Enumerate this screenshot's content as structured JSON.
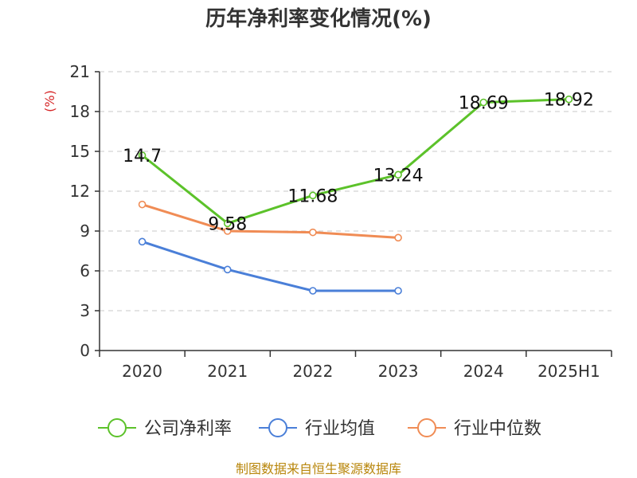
{
  "chart_data": {
    "type": "line",
    "title": "历年净利率变化情况(%)",
    "ylabel": "(%)",
    "xlabel": "",
    "categories": [
      "2020",
      "2021",
      "2022",
      "2023",
      "2024",
      "2025H1"
    ],
    "ylim": [
      0,
      21
    ],
    "yticks": [
      0,
      3,
      6,
      9,
      12,
      15,
      18,
      21
    ],
    "grid": true,
    "legend_position": "bottom",
    "series": [
      {
        "name": "公司净利率",
        "color": "#5cc22a",
        "values": [
          14.7,
          9.58,
          11.68,
          13.24,
          18.69,
          18.92
        ],
        "labels": [
          "14.7",
          "9.58",
          "11.68",
          "13.24",
          "18.69",
          "18.92"
        ]
      },
      {
        "name": "行业均值",
        "color": "#4a7fd8",
        "values": [
          8.2,
          6.1,
          4.5,
          4.5,
          null,
          null
        ]
      },
      {
        "name": "行业中位数",
        "color": "#f08c55",
        "values": [
          11.0,
          9.0,
          8.9,
          8.5,
          null,
          null
        ]
      }
    ],
    "source": "制图数据来自恒生聚源数据库"
  }
}
